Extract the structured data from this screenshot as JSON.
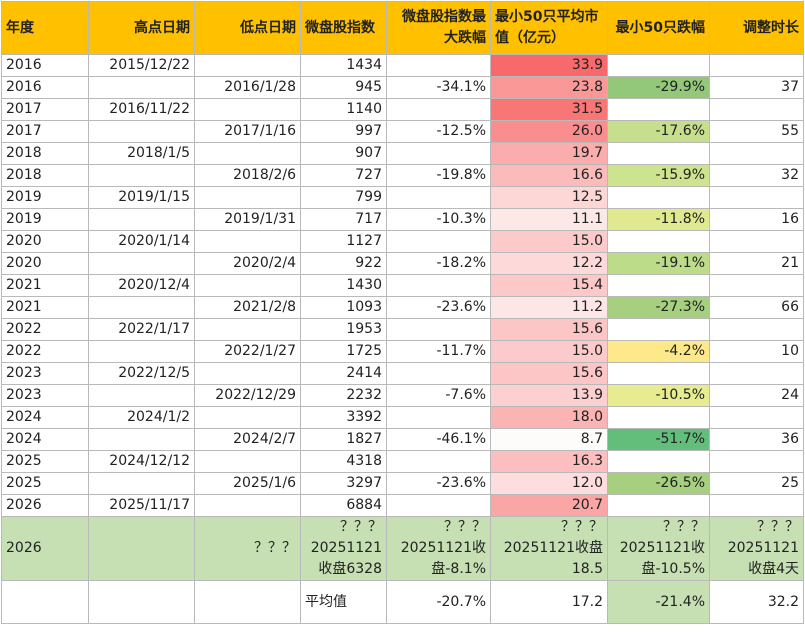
{
  "headers": [
    "年度",
    "高点日期",
    "低点日期",
    "微盘股指数",
    "微盘股指数最大跌幅",
    "最小50只平均市值（亿元）",
    "最小50只跌幅",
    "调整时长"
  ],
  "rows": [
    {
      "year": "2016",
      "high": "2015/12/22",
      "low": "",
      "index": "1434",
      "drop": "",
      "cap": "33.9",
      "cap_color": "#f8696b",
      "d50": "",
      "d50_color": "",
      "dur": ""
    },
    {
      "year": "2016",
      "high": "",
      "low": "2016/1/28",
      "index": "945",
      "drop": "-34.1%",
      "cap": "23.8",
      "cap_color": "#fa9898",
      "d50": "-29.9%",
      "d50_color": "#93c87a",
      "dur": "37"
    },
    {
      "year": "2017",
      "high": "2016/11/22",
      "low": "",
      "index": "1140",
      "drop": "",
      "cap": "31.5",
      "cap_color": "#f97677",
      "d50": "",
      "d50_color": "",
      "dur": ""
    },
    {
      "year": "2017",
      "high": "",
      "low": "2017/1/16",
      "index": "997",
      "drop": "-12.5%",
      "cap": "26.0",
      "cap_color": "#fa8d8e",
      "d50": "-17.6%",
      "d50_color": "#c5df8c",
      "dur": "55"
    },
    {
      "year": "2018",
      "high": "2018/1/5",
      "low": "",
      "index": "907",
      "drop": "",
      "cap": "19.7",
      "cap_color": "#fbacac",
      "d50": "",
      "d50_color": "",
      "dur": ""
    },
    {
      "year": "2018",
      "high": "",
      "low": "2018/2/6",
      "index": "727",
      "drop": "-19.8%",
      "cap": "16.6",
      "cap_color": "#fcbbbb",
      "d50": "-15.9%",
      "d50_color": "#cde38e",
      "dur": "32"
    },
    {
      "year": "2019",
      "high": "2019/1/15",
      "low": "",
      "index": "799",
      "drop": "",
      "cap": "12.5",
      "cap_color": "#fdd6d6",
      "d50": "",
      "d50_color": "",
      "dur": ""
    },
    {
      "year": "2019",
      "high": "",
      "low": "2019/1/31",
      "index": "717",
      "drop": "-10.3%",
      "cap": "11.1",
      "cap_color": "#fde8e8",
      "d50": "-11.8%",
      "d50_color": "#e1e990",
      "dur": "16"
    },
    {
      "year": "2020",
      "high": "2020/1/14",
      "low": "",
      "index": "1127",
      "drop": "",
      "cap": "15.0",
      "cap_color": "#fccaca",
      "d50": "",
      "d50_color": "",
      "dur": ""
    },
    {
      "year": "2020",
      "high": "",
      "low": "2020/2/4",
      "index": "922",
      "drop": "-18.2%",
      "cap": "12.2",
      "cap_color": "#fdd9d9",
      "d50": "-19.1%",
      "d50_color": "#bcdc8a",
      "dur": "21"
    },
    {
      "year": "2021",
      "high": "2020/12/4",
      "low": "",
      "index": "1430",
      "drop": "",
      "cap": "15.4",
      "cap_color": "#fcc8c8",
      "d50": "",
      "d50_color": "",
      "dur": ""
    },
    {
      "year": "2021",
      "high": "",
      "low": "2021/2/8",
      "index": "1093",
      "drop": "-23.6%",
      "cap": "11.2",
      "cap_color": "#fde6e6",
      "d50": "-27.3%",
      "d50_color": "#a6d07f",
      "dur": "66"
    },
    {
      "year": "2022",
      "high": "2022/1/17",
      "low": "",
      "index": "1953",
      "drop": "",
      "cap": "15.6",
      "cap_color": "#fcc6c6",
      "d50": "",
      "d50_color": "",
      "dur": ""
    },
    {
      "year": "2022",
      "high": "",
      "low": "2022/1/27",
      "index": "1725",
      "drop": "-11.7%",
      "cap": "15.0",
      "cap_color": "#fccaca",
      "d50": "-4.2%",
      "d50_color": "#fee98a",
      "dur": "10"
    },
    {
      "year": "2023",
      "high": "2022/12/5",
      "low": "",
      "index": "2414",
      "drop": "",
      "cap": "15.6",
      "cap_color": "#fcc6c6",
      "d50": "",
      "d50_color": "",
      "dur": ""
    },
    {
      "year": "2023",
      "high": "",
      "low": "2022/12/29",
      "index": "2232",
      "drop": "-7.6%",
      "cap": "13.9",
      "cap_color": "#fcd0d0",
      "d50": "-10.5%",
      "d50_color": "#e6ec8f",
      "dur": "24"
    },
    {
      "year": "2024",
      "high": "2024/1/2",
      "low": "",
      "index": "3392",
      "drop": "",
      "cap": "18.0",
      "cap_color": "#fbb4b4",
      "d50": "",
      "d50_color": "",
      "dur": ""
    },
    {
      "year": "2024",
      "high": "",
      "low": "2024/2/7",
      "index": "1827",
      "drop": "-46.1%",
      "cap": "8.7",
      "cap_color": "#fefbfb",
      "d50": "-51.7%",
      "d50_color": "#63be7b",
      "dur": "36"
    },
    {
      "year": "2025",
      "high": "2024/12/12",
      "low": "",
      "index": "4318",
      "drop": "",
      "cap": "16.3",
      "cap_color": "#fcbebe",
      "d50": "",
      "d50_color": "",
      "dur": ""
    },
    {
      "year": "2025",
      "high": "",
      "low": "2025/1/6",
      "index": "3297",
      "drop": "-23.6%",
      "cap": "12.0",
      "cap_color": "#fddddd",
      "d50": "-26.5%",
      "d50_color": "#a6d07f",
      "dur": "25"
    },
    {
      "year": "2026",
      "high": "2025/11/17",
      "low": "",
      "index": "6884",
      "drop": "",
      "cap": "20.7",
      "cap_color": "#fba6a6",
      "d50": "",
      "d50_color": "",
      "dur": ""
    }
  ],
  "projection": {
    "year": "2026",
    "low": "？？？",
    "index": "？？？20251121收盘6328",
    "drop": "？？？20251121收盘-8.1%",
    "cap": "？？？20251121收盘18.5",
    "d50": "？？？20251121收盘-10.5%",
    "dur": "？？？20251121收盘4天",
    "bg_color": "#c6e0b4"
  },
  "average": {
    "label": "平均值",
    "drop": "-20.7%",
    "cap": "17.2",
    "d50": "-21.4%",
    "d50_color": "#c6e0b4",
    "dur": "32.2"
  }
}
